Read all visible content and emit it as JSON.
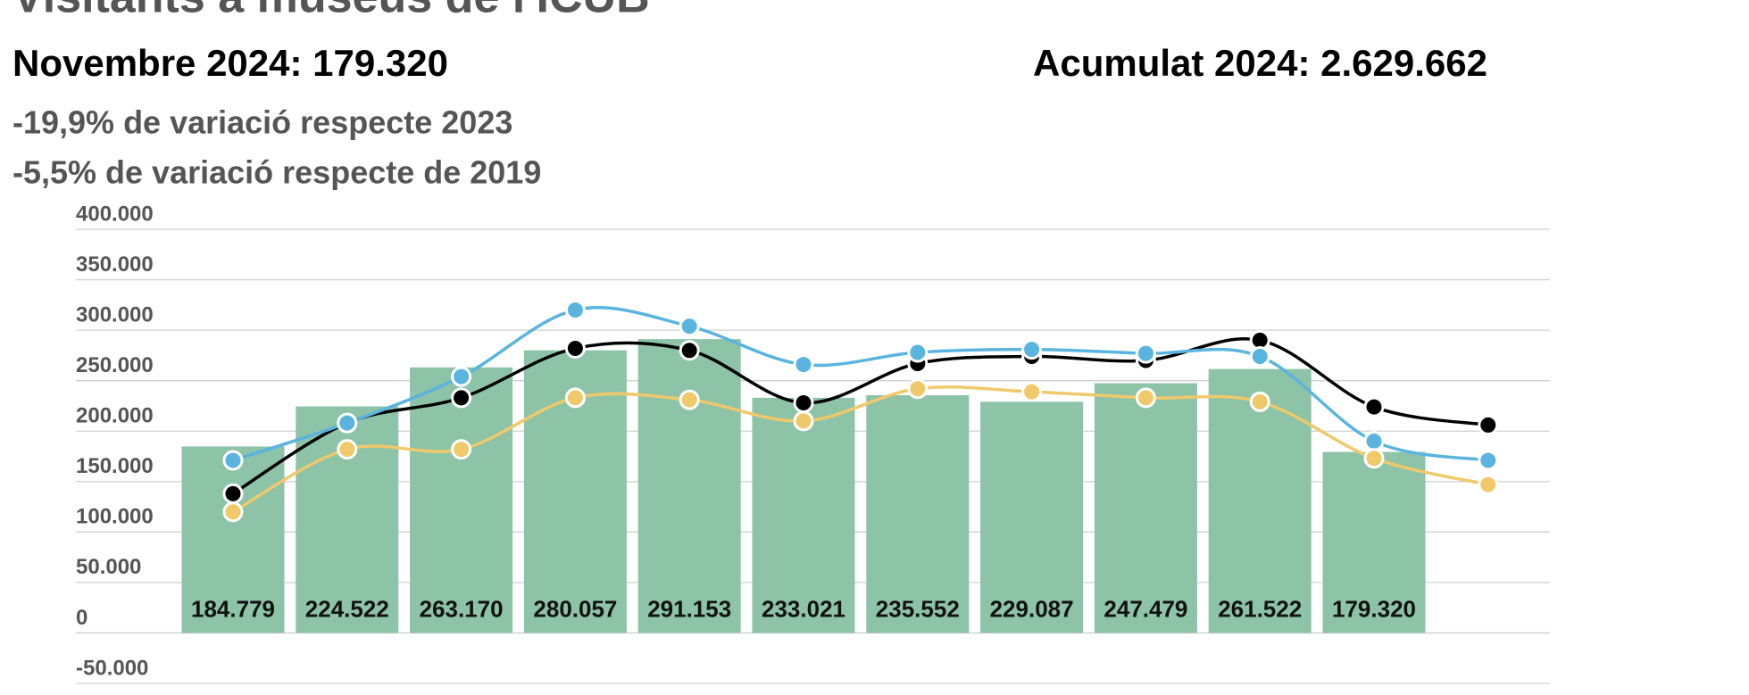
{
  "chart_data": {
    "type": "bar",
    "title": "Visitants a museus de l'ICUB*",
    "headline_left": "Novembre 2024: 179.320",
    "headline_right": "Acumulat 2024: 2.629.662",
    "notes": [
      "-19,9% de variació respecte 2023",
      "-5,5% de variació respecte de 2019"
    ],
    "categories": [
      null,
      null,
      null,
      null,
      null,
      null,
      null,
      null,
      null,
      null,
      null,
      null
    ],
    "values": [
      184779,
      224522,
      263170,
      280057,
      291153,
      233021,
      235552,
      229087,
      247479,
      261522,
      179320,
      null
    ],
    "value_labels": [
      "184.779",
      "224.522",
      "263.170",
      "280.057",
      "291.153",
      "233.021",
      "235.552",
      "229.087",
      "247.479",
      "261.522",
      "179.320",
      null
    ],
    "color": "#8dc3a7",
    "series": [
      {
        "type": "line",
        "color": "#000000",
        "values": [
          138000,
          208000,
          233000,
          282000,
          280000,
          228000,
          267000,
          274000,
          270000,
          290000,
          224000,
          206000
        ]
      },
      {
        "type": "line",
        "color": "#5ab4e0",
        "values": [
          171000,
          208000,
          254000,
          320000,
          304000,
          266000,
          278000,
          281000,
          277000,
          274000,
          190000,
          171000
        ]
      },
      {
        "type": "line",
        "color": "#f0c96b",
        "values": [
          120000,
          182000,
          182000,
          233000,
          231000,
          210000,
          242000,
          239000,
          233000,
          229000,
          173000,
          147000
        ]
      }
    ],
    "ylim": [
      -50000,
      400000
    ],
    "yticks": [
      {
        "value": -50000,
        "label": "-50.000"
      },
      0,
      {
        "value": 50000,
        "label": "50.000"
      },
      {
        "value": 100000,
        "label": "100.000"
      },
      {
        "value": 150000,
        "label": "150.000"
      },
      {
        "value": 200000,
        "label": "200.000"
      },
      {
        "value": 250000,
        "label": "250.000"
      },
      {
        "value": 300000,
        "label": "300.000"
      },
      {
        "value": 350000,
        "label": "350.000"
      },
      {
        "value": 400000,
        "label": "400.000"
      }
    ],
    "grid": true
  }
}
